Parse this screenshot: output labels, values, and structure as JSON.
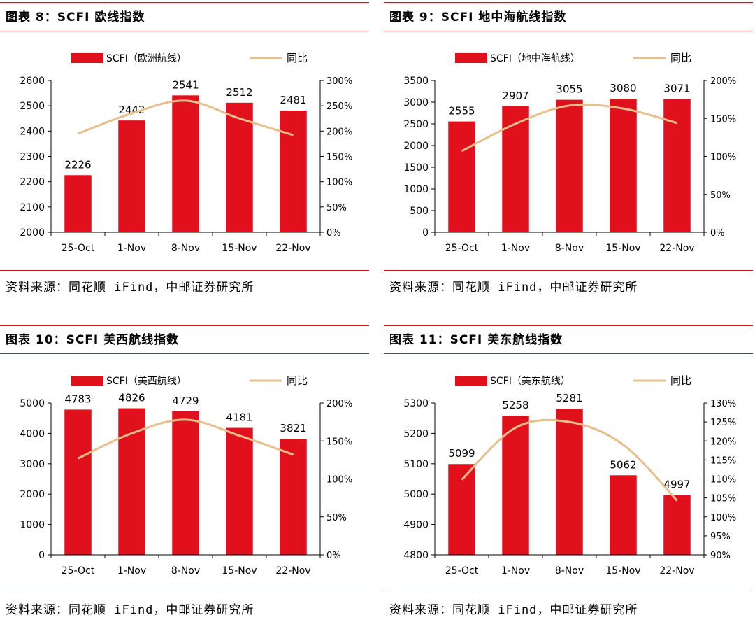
{
  "colors": {
    "bar": "#e0111d",
    "line": "#e6bf8a",
    "rule": "#c8161d",
    "axis": "#000000"
  },
  "source_text": "资料来源：同花顺 iFind，中邮证券研究所",
  "chart_data": [
    {
      "type": "bar",
      "title": "图表 8：SCFI 欧线指数",
      "source": "资料来源：同花顺 iFind，中邮证券研究所",
      "categories": [
        "25-Oct",
        "1-Nov",
        "8-Nov",
        "15-Nov",
        "22-Nov"
      ],
      "series": [
        {
          "name": "SCFI（欧洲航线）",
          "type": "bar",
          "axis": "left",
          "values": [
            2226,
            2442,
            2541,
            2512,
            2481
          ]
        },
        {
          "name": "同比",
          "type": "line",
          "axis": "right",
          "values": [
            195,
            235,
            260,
            225,
            192
          ]
        }
      ],
      "data_labels": [
        "2226",
        "2442",
        "2541",
        "2512",
        "2481"
      ],
      "left_axis": {
        "ylim": [
          2000,
          2600
        ],
        "ticks": [
          2000,
          2100,
          2200,
          2300,
          2400,
          2500,
          2600
        ],
        "tick_labels": [
          "2000",
          "2100",
          "2200",
          "2300",
          "2400",
          "2500",
          "2600"
        ]
      },
      "right_axis": {
        "ylim": [
          0,
          300
        ],
        "ticks": [
          0,
          50,
          100,
          150,
          200,
          250,
          300
        ],
        "tick_labels": [
          "0%",
          "50%",
          "100%",
          "150%",
          "200%",
          "250%",
          "300%"
        ]
      },
      "legend": {
        "bar": "SCFI（欧洲航线）",
        "line": "同比"
      }
    },
    {
      "type": "bar",
      "title": "图表 9：SCFI 地中海航线指数",
      "source": "资料来源：同花顺 iFind，中邮证券研究所",
      "categories": [
        "25-Oct",
        "1-Nov",
        "8-Nov",
        "15-Nov",
        "22-Nov"
      ],
      "series": [
        {
          "name": "SCFI（地中海航线）",
          "type": "bar",
          "axis": "left",
          "values": [
            2555,
            2907,
            3055,
            3080,
            3071
          ]
        },
        {
          "name": "同比",
          "type": "line",
          "axis": "right",
          "values": [
            107,
            143,
            167,
            163,
            144
          ]
        }
      ],
      "data_labels": [
        "2555",
        "2907",
        "3055",
        "3080",
        "3071"
      ],
      "left_axis": {
        "ylim": [
          0,
          3500
        ],
        "ticks": [
          0,
          500,
          1000,
          1500,
          2000,
          2500,
          3000,
          3500
        ],
        "tick_labels": [
          "0",
          "500",
          "1000",
          "1500",
          "2000",
          "2500",
          "3000",
          "3500"
        ]
      },
      "right_axis": {
        "ylim": [
          0,
          200
        ],
        "ticks": [
          0,
          50,
          100,
          150,
          200
        ],
        "tick_labels": [
          "0%",
          "50%",
          "100%",
          "150%",
          "200%"
        ]
      },
      "legend": {
        "bar": "SCFI（地中海航线）",
        "line": "同比"
      }
    },
    {
      "type": "bar",
      "title": "图表 10：SCFI 美西航线指数",
      "source": "资料来源：同花顺 iFind，中邮证券研究所",
      "categories": [
        "25-Oct",
        "1-Nov",
        "8-Nov",
        "15-Nov",
        "22-Nov"
      ],
      "series": [
        {
          "name": "SCFI（美西航线）",
          "type": "bar",
          "axis": "left",
          "values": [
            4783,
            4826,
            4729,
            4181,
            3821
          ]
        },
        {
          "name": "同比",
          "type": "line",
          "axis": "right",
          "values": [
            127,
            160,
            178,
            157,
            132
          ]
        }
      ],
      "data_labels": [
        "4783",
        "4826",
        "4729",
        "4181",
        "3821"
      ],
      "left_axis": {
        "ylim": [
          0,
          5000
        ],
        "ticks": [
          0,
          1000,
          2000,
          3000,
          4000,
          5000
        ],
        "tick_labels": [
          "0",
          "1000",
          "2000",
          "3000",
          "4000",
          "5000"
        ]
      },
      "right_axis": {
        "ylim": [
          0,
          200
        ],
        "ticks": [
          0,
          50,
          100,
          150,
          200
        ],
        "tick_labels": [
          "0%",
          "50%",
          "100%",
          "150%",
          "200%"
        ]
      },
      "legend": {
        "bar": "SCFI（美西航线）",
        "line": "同比"
      }
    },
    {
      "type": "bar",
      "title": "图表 11：SCFI 美东航线指数",
      "source": "资料来源：同花顺 iFind，中邮证券研究所",
      "categories": [
        "25-Oct",
        "1-Nov",
        "8-Nov",
        "15-Nov",
        "22-Nov"
      ],
      "series": [
        {
          "name": "SCFI（美东航线）",
          "type": "bar",
          "axis": "left",
          "values": [
            5099,
            5258,
            5281,
            5062,
            4997
          ]
        },
        {
          "name": "同比",
          "type": "line",
          "axis": "right",
          "values": [
            109.8,
            123.5,
            125,
            119,
            104.3
          ]
        }
      ],
      "data_labels": [
        "5099",
        "5258",
        "5281",
        "5062",
        "4997"
      ],
      "left_axis": {
        "ylim": [
          4800,
          5300
        ],
        "ticks": [
          4800,
          4900,
          5000,
          5100,
          5200,
          5300
        ],
        "tick_labels": [
          "4800",
          "4900",
          "5000",
          "5100",
          "5200",
          "5300"
        ]
      },
      "right_axis": {
        "ylim": [
          90,
          130
        ],
        "ticks": [
          90,
          95,
          100,
          105,
          110,
          115,
          120,
          125,
          130
        ],
        "tick_labels": [
          "90%",
          "95%",
          "100%",
          "105%",
          "110%",
          "115%",
          "120%",
          "125%",
          "130%"
        ]
      },
      "legend": {
        "bar": "SCFI（美东航线）",
        "line": "同比"
      }
    }
  ]
}
